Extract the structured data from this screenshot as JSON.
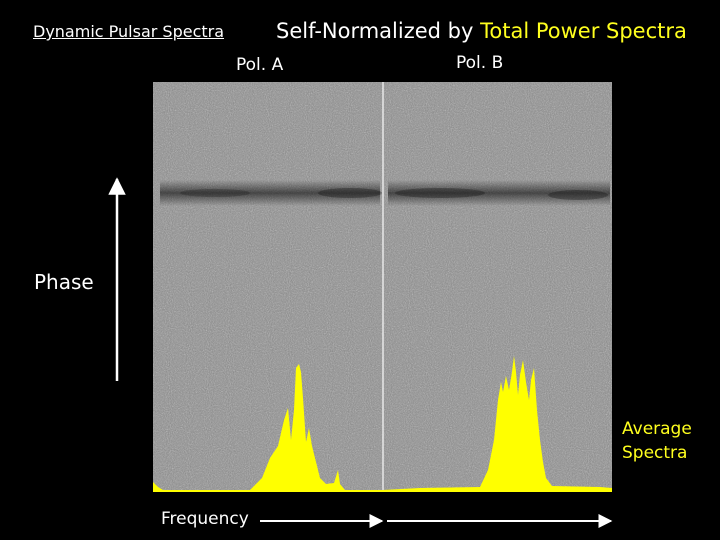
{
  "header": {
    "subtitle": "Dynamic Pulsar Spectra",
    "title_prefix": "Self-Normalized by ",
    "title_highlight": "Total Power Spectra"
  },
  "panels": {
    "pol_a_label": "Pol.  A",
    "pol_b_label": "Pol.  B"
  },
  "axes": {
    "y_label": "Phase",
    "x_label": "Frequency"
  },
  "overlay": {
    "average_label_line1": "Average",
    "average_label_line2": "Spectra"
  },
  "colors": {
    "background": "#000000",
    "text": "#ffffff",
    "highlight": "#ffff1e",
    "spectra_fill": "#ffff00"
  },
  "icons": [
    "up-arrow-icon",
    "right-arrow-icon"
  ]
}
